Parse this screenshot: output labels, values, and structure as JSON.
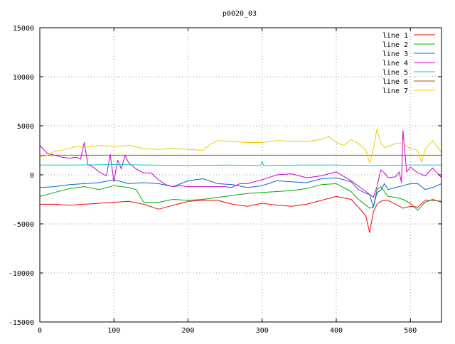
{
  "chart_data": {
    "type": "line",
    "title": "p0020_03",
    "xlabel": "",
    "ylabel": "",
    "xlim": [
      0,
      542
    ],
    "ylim": [
      -15000,
      15000
    ],
    "x_ticks": [
      0,
      100,
      200,
      300,
      400,
      500
    ],
    "y_ticks": [
      -15000,
      -10000,
      -5000,
      0,
      5000,
      10000,
      15000
    ],
    "grid": true,
    "legend_position": "top-right",
    "series": [
      {
        "name": "line 1",
        "color": "#ff0000",
        "x": [
          0,
          20,
          40,
          60,
          80,
          100,
          120,
          140,
          160,
          180,
          200,
          220,
          240,
          260,
          280,
          300,
          320,
          340,
          360,
          380,
          400,
          420,
          430,
          440,
          445,
          450,
          455,
          460,
          465,
          470,
          480,
          490,
          500,
          510,
          520,
          530,
          542
        ],
        "y": [
          -3000,
          -3000,
          -3100,
          -3000,
          -2900,
          -2800,
          -2700,
          -3000,
          -3500,
          -3100,
          -2700,
          -2600,
          -2600,
          -3000,
          -3200,
          -2900,
          -3100,
          -3200,
          -3000,
          -2600,
          -2200,
          -2500,
          -3300,
          -4200,
          -5900,
          -3800,
          -3000,
          -2700,
          -2600,
          -2600,
          -3000,
          -3400,
          -3200,
          -3300,
          -2600,
          -2600,
          -2700
        ]
      },
      {
        "name": "line 2",
        "color": "#00aa00",
        "x": [
          0,
          20,
          40,
          60,
          80,
          100,
          120,
          130,
          140,
          160,
          180,
          200,
          220,
          240,
          260,
          280,
          300,
          320,
          340,
          360,
          380,
          400,
          420,
          430,
          440,
          445,
          450,
          455,
          460,
          465,
          470,
          480,
          490,
          500,
          510,
          520,
          530,
          542
        ],
        "y": [
          -2200,
          -1800,
          -1400,
          -1200,
          -1500,
          -1100,
          -1300,
          -1500,
          -2800,
          -2800,
          -2500,
          -2600,
          -2500,
          -2300,
          -2100,
          -1900,
          -1800,
          -1700,
          -1600,
          -1400,
          -1000,
          -900,
          -1700,
          -2500,
          -3100,
          -3400,
          -3300,
          -1500,
          -1200,
          -1700,
          -2200,
          -2300,
          -2500,
          -2900,
          -3600,
          -2800,
          -2500,
          -2800
        ]
      },
      {
        "name": "line 3",
        "color": "#0066cc",
        "x": [
          0,
          20,
          40,
          60,
          80,
          100,
          120,
          140,
          160,
          180,
          200,
          220,
          240,
          260,
          280,
          300,
          320,
          340,
          360,
          380,
          400,
          420,
          430,
          440,
          445,
          450,
          455,
          460,
          465,
          470,
          480,
          490,
          500,
          510,
          520,
          530,
          542
        ],
        "y": [
          -1300,
          -1200,
          -1000,
          -900,
          -800,
          -500,
          -900,
          -800,
          -900,
          -1200,
          -600,
          -400,
          -900,
          -1000,
          -1300,
          -1100,
          -600,
          -700,
          -800,
          -400,
          -300,
          -700,
          -1500,
          -1900,
          -2000,
          -3300,
          -1800,
          -1600,
          -900,
          -1500,
          -1300,
          -1100,
          -900,
          -900,
          -1500,
          -1300,
          -900
        ]
      },
      {
        "name": "line 4",
        "color": "#cc00cc",
        "x": [
          0,
          10,
          20,
          30,
          40,
          50,
          55,
          60,
          65,
          70,
          80,
          90,
          95,
          100,
          105,
          110,
          115,
          120,
          130,
          140,
          150,
          160,
          170,
          180,
          190,
          200,
          210,
          220,
          230,
          240,
          250,
          258,
          270,
          280,
          300,
          320,
          340,
          360,
          380,
          400,
          420,
          440,
          450,
          455,
          460,
          465,
          470,
          480,
          485,
          488,
          490,
          495,
          500,
          510,
          520,
          530,
          542
        ],
        "y": [
          3000,
          2200,
          2000,
          1800,
          1700,
          1800,
          1600,
          3300,
          1000,
          900,
          300,
          -100,
          2100,
          -700,
          1500,
          600,
          2000,
          1200,
          600,
          200,
          200,
          -500,
          -1000,
          -1200,
          -1100,
          -1200,
          -1200,
          -1200,
          -1200,
          -1200,
          -1200,
          -1300,
          -900,
          -900,
          -500,
          0,
          100,
          -300,
          -100,
          300,
          -600,
          -1700,
          -2300,
          -1200,
          500,
          200,
          -300,
          -200,
          300,
          -800,
          4500,
          300,
          800,
          200,
          -100,
          700,
          -300
        ]
      },
      {
        "name": "line 5",
        "color": "#00cccc",
        "x": [
          0,
          50,
          100,
          150,
          200,
          250,
          298,
          300,
          302,
          350,
          400,
          450,
          500,
          542
        ],
        "y": [
          1000,
          1000,
          1050,
          1000,
          950,
          1000,
          950,
          1400,
          950,
          1000,
          1000,
          950,
          1000,
          1000
        ]
      },
      {
        "name": "line 6",
        "color": "#b05000",
        "x": [
          0,
          100,
          200,
          300,
          400,
          500,
          542
        ],
        "y": [
          2000,
          2000,
          2000,
          2000,
          2000,
          2000,
          2000
        ]
      },
      {
        "name": "line 7",
        "color": "#eecc00",
        "x": [
          0,
          10,
          20,
          30,
          40,
          50,
          60,
          80,
          100,
          120,
          140,
          160,
          180,
          200,
          220,
          230,
          240,
          260,
          280,
          300,
          320,
          340,
          360,
          380,
          390,
          400,
          410,
          420,
          430,
          440,
          445,
          450,
          455,
          460,
          465,
          470,
          480,
          490,
          500,
          510,
          515,
          520,
          530,
          542
        ],
        "y": [
          1800,
          2000,
          2400,
          2500,
          2700,
          2900,
          2800,
          3000,
          2900,
          3000,
          2700,
          2600,
          2700,
          2600,
          2500,
          3100,
          3500,
          3400,
          3300,
          3300,
          3500,
          3400,
          3400,
          3600,
          3900,
          3300,
          3000,
          3600,
          3200,
          2500,
          1200,
          2600,
          4700,
          3200,
          2800,
          2900,
          3200,
          3200,
          2700,
          2500,
          1300,
          2600,
          3500,
          2300
        ]
      }
    ]
  }
}
